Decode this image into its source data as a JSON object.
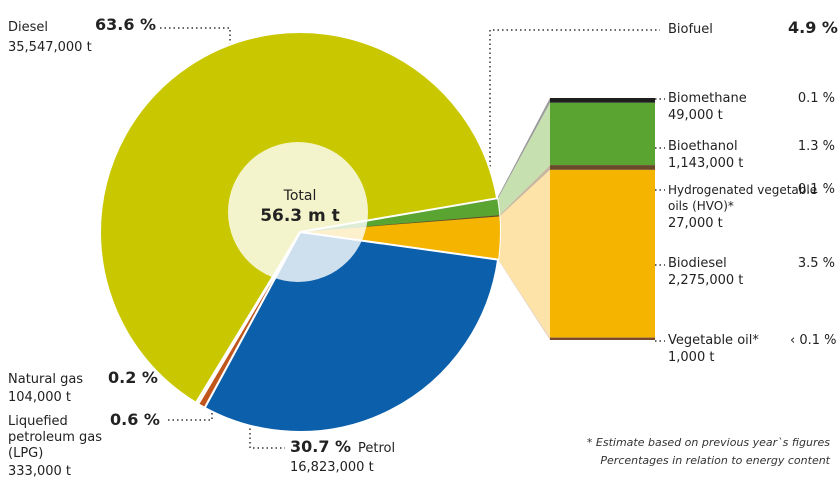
{
  "chart_data": {
    "type": "pie",
    "total_label": "Total",
    "total": "56.3 m t",
    "slices": [
      {
        "name": "Biofuel",
        "value": 4.9,
        "value_label": "4.9 %",
        "color": "#5aa532"
      },
      {
        "name": "Petrol",
        "value": 30.7,
        "value_label": "30.7 %",
        "amount": "16,823,000 t",
        "color": "#0b5fab"
      },
      {
        "name": "Liquefied petroleum gas (LPG)",
        "value": 0.6,
        "value_label": "0.6 %",
        "amount": "333,000 t",
        "color": "#c0561c"
      },
      {
        "name": "Natural gas",
        "value": 0.2,
        "value_label": "0.2 %",
        "amount": "104,000 t",
        "color": "#ecebdc"
      },
      {
        "name": "Diesel",
        "value": 63.6,
        "value_label": "63.6 %",
        "amount": "35,547,000 t",
        "color": "#c9c800"
      }
    ],
    "breakdown": [
      {
        "name": "Biomethane",
        "value": 0.1,
        "value_label": "0.1 %",
        "amount": "49,000 t",
        "color": "#1e1e1e",
        "light": "#9a9a9a"
      },
      {
        "name": "Bioethanol",
        "value": 1.3,
        "value_label": "1.3 %",
        "amount": "1,143,000 t",
        "color": "#5aa532",
        "light": "#c6e0b0"
      },
      {
        "name": "Hydrogenated vegetable oils (HVO)*",
        "value": 0.1,
        "value_label": "0.1 %",
        "amount": "27,000 t",
        "color": "#6b4a2a",
        "light": "#c8b8a0"
      },
      {
        "name": "Biodiesel",
        "value": 3.5,
        "value_label": "3.5 %",
        "amount": "2,275,000 t",
        "color": "#f5b400",
        "light": "#fde3a8"
      },
      {
        "name": "Vegetable oil*",
        "value": 0.05,
        "value_label": "‹ 0.1 %",
        "amount": "1,000 t",
        "color": "#7a4a30",
        "light": "#e8d0b8"
      }
    ],
    "notes": [
      "* Estimate based on previous year`s figures",
      "Percentages in relation to energy content"
    ]
  }
}
